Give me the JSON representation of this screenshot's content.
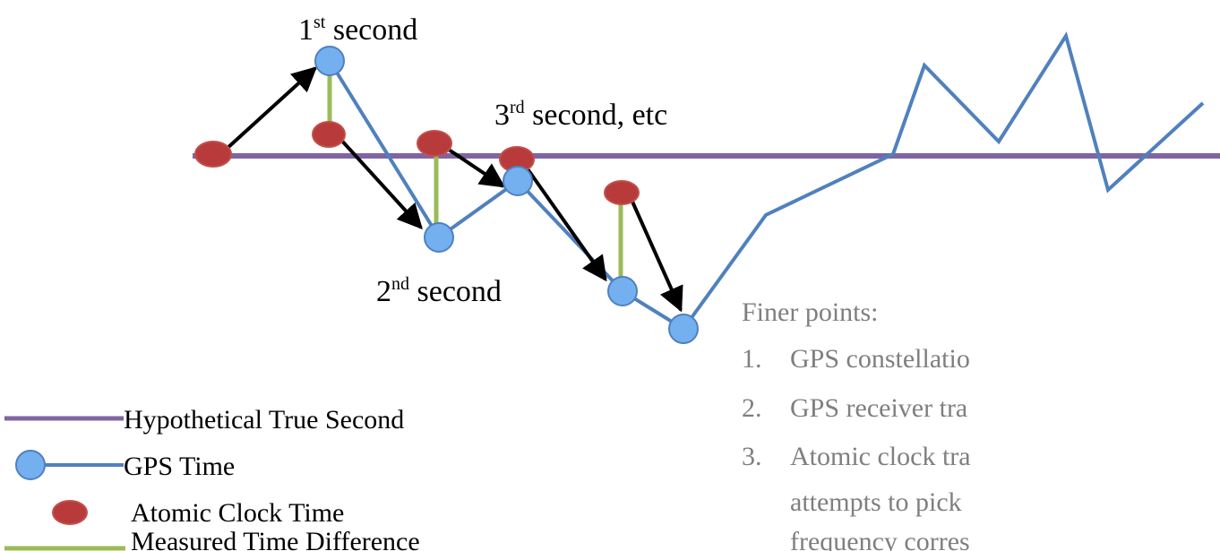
{
  "colors": {
    "true_second": "#8064a2",
    "gps": "#4f81bd",
    "gps_fill": "#74b0f0",
    "atomic": "#c0504d",
    "atomic_fill": "#b83a3a",
    "difference": "#9bbb59",
    "arrow": "#000000",
    "note": "#7f7f7f"
  },
  "labels": {
    "first": {
      "base": "1",
      "sup": "st",
      "rest": " second"
    },
    "second": {
      "base": "2",
      "sup": "nd",
      "rest": " second"
    },
    "third": {
      "base": "3",
      "sup": "rd",
      "rest": " second, etc"
    }
  },
  "legend": {
    "true_second": "Hypothetical True Second",
    "gps": "GPS Time",
    "atomic": "Atomic Clock Time",
    "difference": "Measured Time Difference"
  },
  "notes": {
    "title": "Finer points:",
    "items": [
      {
        "num": "1.",
        "text": "GPS constellatio"
      },
      {
        "num": "2.",
        "text": "GPS receiver tra"
      },
      {
        "num": "3.",
        "text": "Atomic clock tra"
      }
    ],
    "continuation": [
      "attempts to pick",
      "frequency corres"
    ]
  }
}
